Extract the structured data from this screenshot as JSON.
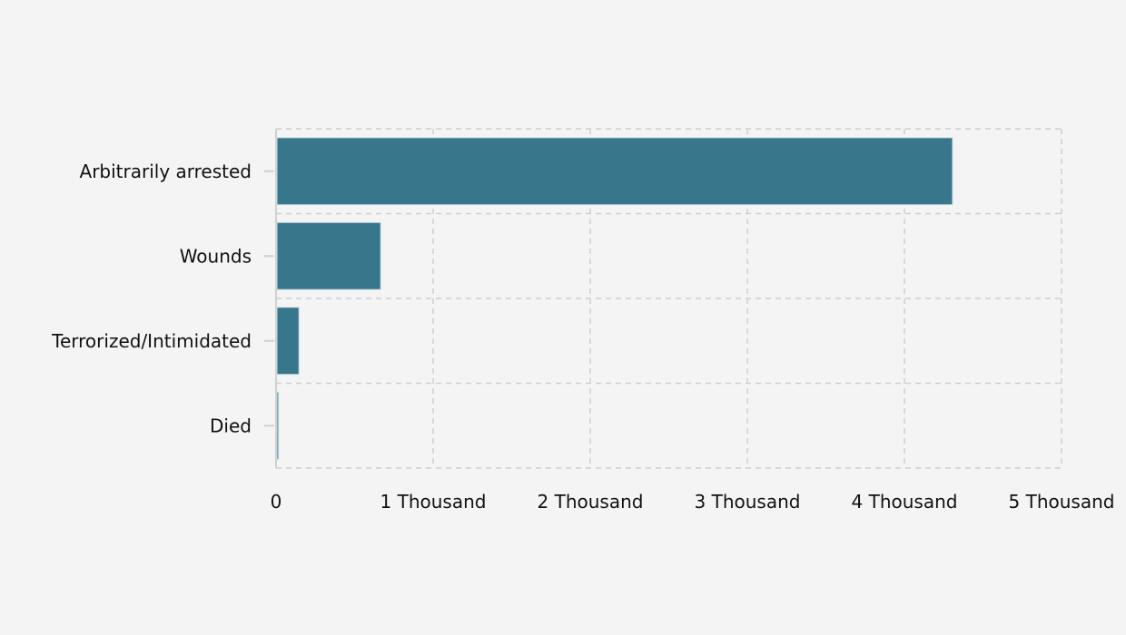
{
  "chart_data": {
    "type": "bar",
    "orientation": "horizontal",
    "title": "",
    "xlabel": "",
    "ylabel": "",
    "categories": [
      "Arbitrarily arrested",
      "Wounds",
      "Terrorized/Intimidated",
      "Died"
    ],
    "values": [
      4300,
      660,
      140,
      10
    ],
    "xlim": [
      0,
      5000
    ],
    "xticks": [
      0,
      1000,
      2000,
      3000,
      4000,
      5000
    ],
    "xtick_labels": [
      "0",
      "1 Thousand",
      "2 Thousand",
      "3 Thousand",
      "4 Thousand",
      "5 Thousand"
    ],
    "grid": true,
    "bar_color": "#317287"
  }
}
